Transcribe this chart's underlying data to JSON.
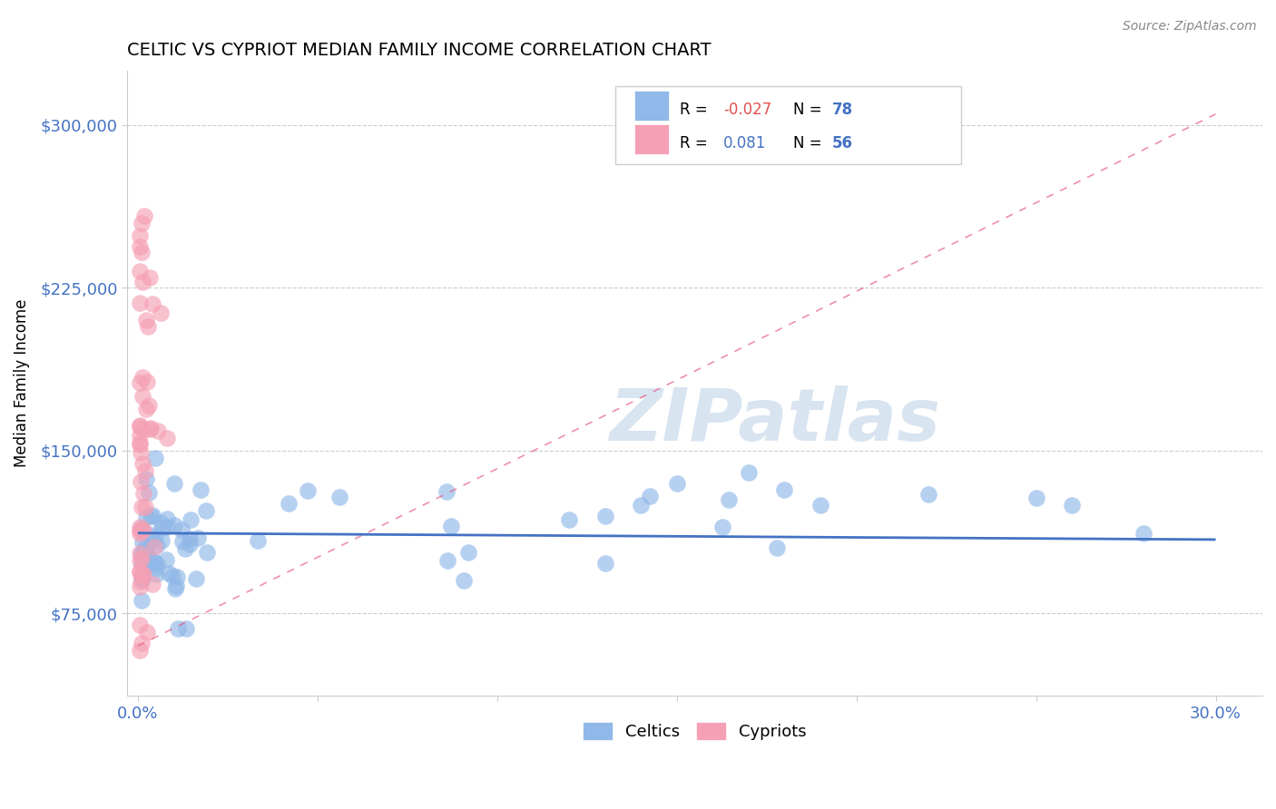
{
  "title": "CELTIC VS CYPRIOT MEDIAN FAMILY INCOME CORRELATION CHART",
  "source": "Source: ZipAtlas.com",
  "ylabel_text": "Median Family Income",
  "y_tick_labels": [
    "$75,000",
    "$150,000",
    "$225,000",
    "$300,000"
  ],
  "y_tick_values": [
    75000,
    150000,
    225000,
    300000
  ],
  "ylim": [
    37000,
    325000
  ],
  "xlim": [
    -0.003,
    0.313
  ],
  "celtics_R": -0.027,
  "celtics_N": 78,
  "cypriots_R": 0.081,
  "cypriots_N": 56,
  "celtic_color": "#90B8E8",
  "cypriot_color": "#F5A0B5",
  "celtic_line_color": "#4472C4",
  "cypriot_line_color": "#E8608A",
  "label_color": "#4472C4",
  "watermark_color": "#D8E4F0",
  "r_neg_color": "#E05050",
  "r_pos_color": "#4472C4",
  "n_color": "#4472C4",
  "celtic_trend_y0": 112000,
  "celtic_trend_y1": 109000,
  "cypriot_trend_x0": 0.0,
  "cypriot_trend_y0": 60000,
  "cypriot_trend_x1": 0.3,
  "cypriot_trend_y1": 305000
}
